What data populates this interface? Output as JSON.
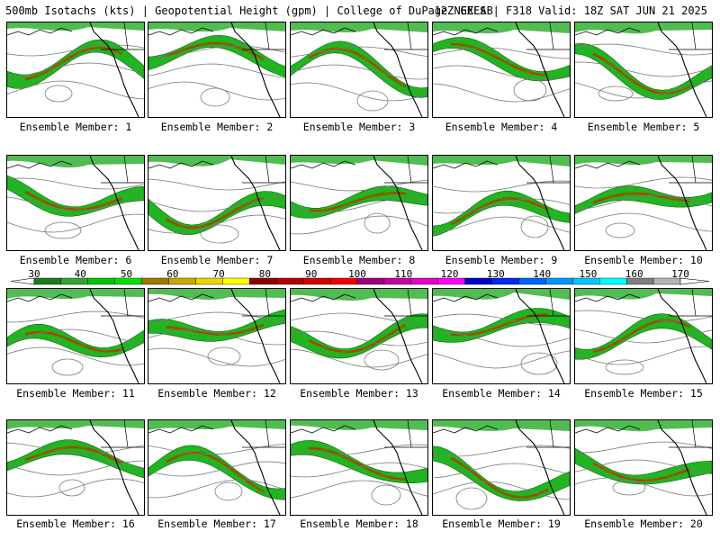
{
  "header": {
    "title": "500mb Isotachs (kts) | Geopotential Height (gpm) | College of DuPage NEXLAB",
    "run": "12Z GEFS | F318 Valid: 18Z SAT JUN 21 2025"
  },
  "panels": [
    {
      "label": "Ensemble Member: 1"
    },
    {
      "label": "Ensemble Member: 2"
    },
    {
      "label": "Ensemble Member: 3"
    },
    {
      "label": "Ensemble Member: 4"
    },
    {
      "label": "Ensemble Member: 5"
    },
    {
      "label": "Ensemble Member: 6"
    },
    {
      "label": "Ensemble Member: 7"
    },
    {
      "label": "Ensemble Member: 8"
    },
    {
      "label": "Ensemble Member: 9"
    },
    {
      "label": "Ensemble Member: 10"
    },
    {
      "label": "Ensemble Member: 11"
    },
    {
      "label": "Ensemble Member: 12"
    },
    {
      "label": "Ensemble Member: 13"
    },
    {
      "label": "Ensemble Member: 14"
    },
    {
      "label": "Ensemble Member: 15"
    },
    {
      "label": "Ensemble Member: 16"
    },
    {
      "label": "Ensemble Member: 17"
    },
    {
      "label": "Ensemble Member: 18"
    },
    {
      "label": "Ensemble Member: 19"
    },
    {
      "label": "Ensemble Member: 20"
    }
  ],
  "colorbar": {
    "ticks": [
      "30",
      "40",
      "50",
      "60",
      "70",
      "80",
      "90",
      "100",
      "110",
      "120",
      "130",
      "140",
      "150",
      "160",
      "170"
    ],
    "colors": [
      "#1f7a1f",
      "#33a533",
      "#00c800",
      "#00e000",
      "#9a7a00",
      "#c8a800",
      "#e6d800",
      "#ffff00",
      "#8c0000",
      "#b40000",
      "#d20000",
      "#f00000",
      "#a0007a",
      "#c800a0",
      "#e600c8",
      "#ff00ff",
      "#0000c8",
      "#0028f0",
      "#0064ff",
      "#0096ff",
      "#00c8ff",
      "#00ffff",
      "#808080",
      "#b4b4b4"
    ]
  }
}
